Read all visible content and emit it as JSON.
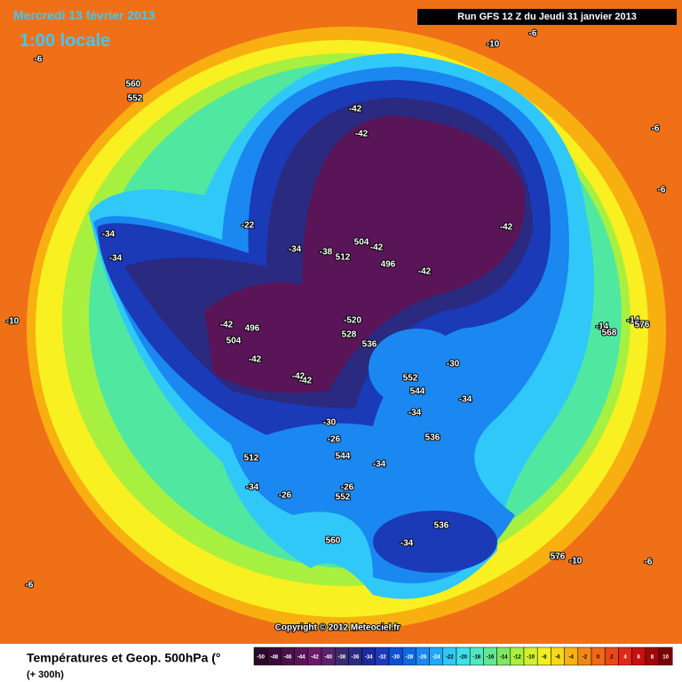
{
  "header": {
    "date": "Mercredi 13 février 2013",
    "time": "1:00 locale",
    "run": "Run GFS 12 Z du Jeudi 31 janvier 2013"
  },
  "copyright": "Copyright © 2012 Meteociel.fr",
  "footer": {
    "title": "Températures et Geop. 500hPa (°",
    "range": "(+ 300h)"
  },
  "colorbar": {
    "ticks": [
      -50,
      -48,
      -46,
      -44,
      -42,
      -40,
      -38,
      -36,
      -34,
      -32,
      -30,
      -28,
      -26,
      -24,
      -22,
      -20,
      -18,
      -16,
      -14,
      -12,
      -10,
      -8,
      -6,
      -4,
      -2,
      0,
      2,
      4,
      6,
      8,
      10
    ],
    "colors": [
      "#2a0a2a",
      "#3a0c3a",
      "#4a1048",
      "#5a1458",
      "#6a1a6a",
      "#5a2070",
      "#3a2a6a",
      "#2a2a80",
      "#1a2a9a",
      "#1a3ab8",
      "#1050d0",
      "#1068e0",
      "#1a88f0",
      "#20a8f8",
      "#30c8f8",
      "#40e0e8",
      "#50e8c0",
      "#60e890",
      "#80e860",
      "#a8f040",
      "#d0f030",
      "#f0f020",
      "#f8d818",
      "#f8b010",
      "#f08818",
      "#f06818",
      "#e84818",
      "#e02818",
      "#c81010",
      "#a00808",
      "#780404"
    ]
  },
  "map_labels": [
    "-6",
    "560",
    "552",
    "-10",
    "-6",
    "-42",
    "-42",
    "-22",
    "-34",
    "-34",
    "-34",
    "-38",
    "504",
    "512",
    "-42",
    "496",
    "-42",
    "-42",
    "-6",
    "-6",
    "-10",
    "-42",
    "496",
    "504",
    "-42",
    "-520",
    "528",
    "536",
    "-42",
    "-42",
    "552",
    "-30",
    "544",
    "-34",
    "-34",
    "536",
    "-30",
    "-26",
    "512",
    "544",
    "-34",
    "-34",
    "-26",
    "-26",
    "552",
    "560",
    "536",
    "-34",
    "576",
    "-10",
    "-6",
    "-6",
    "-14",
    "568",
    "-14",
    "576"
  ]
}
